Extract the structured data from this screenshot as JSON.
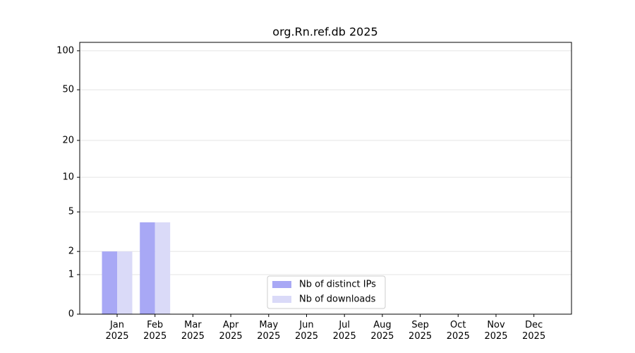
{
  "chart_data": {
    "type": "bar",
    "title": "org.Rn.ref.db 2025",
    "categories": [
      "Jan\n2025",
      "Feb\n2025",
      "Mar\n2025",
      "Apr\n2025",
      "May\n2025",
      "Jun\n2025",
      "Jul\n2025",
      "Aug\n2025",
      "Sep\n2025",
      "Oct\n2025",
      "Nov\n2025",
      "Dec\n2025"
    ],
    "series": [
      {
        "name": "Nb of distinct IPs",
        "color": "#a8a8f5",
        "values": [
          2,
          4,
          0,
          0,
          0,
          0,
          0,
          0,
          0,
          0,
          0,
          0
        ]
      },
      {
        "name": "Nb of downloads",
        "color": "#dadaf8",
        "values": [
          2,
          4,
          0,
          0,
          0,
          0,
          0,
          0,
          0,
          0,
          0,
          0
        ]
      }
    ],
    "yscale": "log1p",
    "ylim": [
      0,
      116
    ],
    "yticks": [
      0,
      1,
      2,
      5,
      10,
      20,
      50,
      100
    ],
    "grid": true,
    "legend": "lower center"
  }
}
